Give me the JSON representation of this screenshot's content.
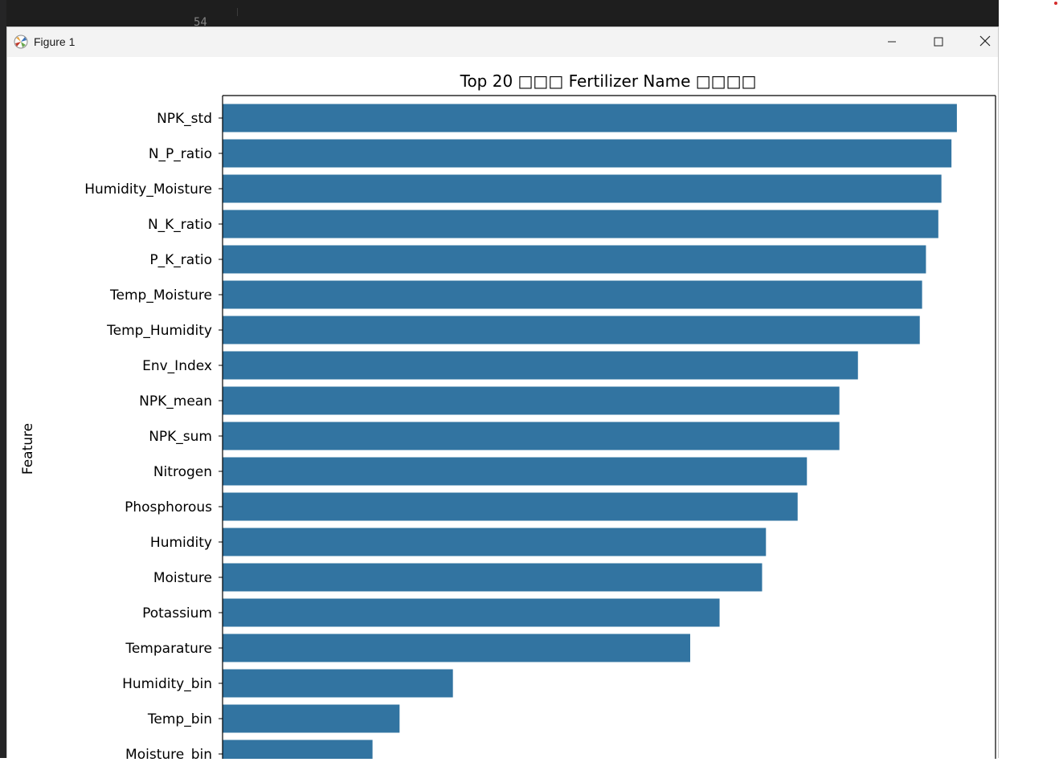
{
  "window": {
    "title": "Figure 1",
    "controls": [
      "minimize-icon",
      "maximize-icon",
      "close-icon"
    ]
  },
  "editor": {
    "line_number": "54"
  },
  "colors": {
    "bar": "#3274a1",
    "axis": "#000000"
  },
  "chart_data": {
    "type": "bar",
    "orientation": "horizontal",
    "title": "Top 20 □□□ Fertilizer Name □□□□",
    "ylabel": "Feature",
    "xlabel": "",
    "categories": [
      "NPK_std",
      "N_P_ratio",
      "Humidity_Moisture",
      "N_K_ratio",
      "P_K_ratio",
      "Temp_Moisture",
      "Temp_Humidity",
      "Env_Index",
      "NPK_mean",
      "NPK_sum",
      "Nitrogen",
      "Phosphorous",
      "Humidity",
      "Moisture",
      "Potassium",
      "Temparature",
      "Humidity_bin",
      "Temp_bin",
      "Moisture_bin"
    ],
    "values": [
      0.95,
      0.943,
      0.93,
      0.926,
      0.91,
      0.905,
      0.902,
      0.822,
      0.798,
      0.798,
      0.756,
      0.744,
      0.703,
      0.698,
      0.643,
      0.605,
      0.298,
      0.229,
      0.194
    ],
    "xlim": [
      0,
      1.0
    ],
    "grid": false,
    "legend": "none"
  }
}
